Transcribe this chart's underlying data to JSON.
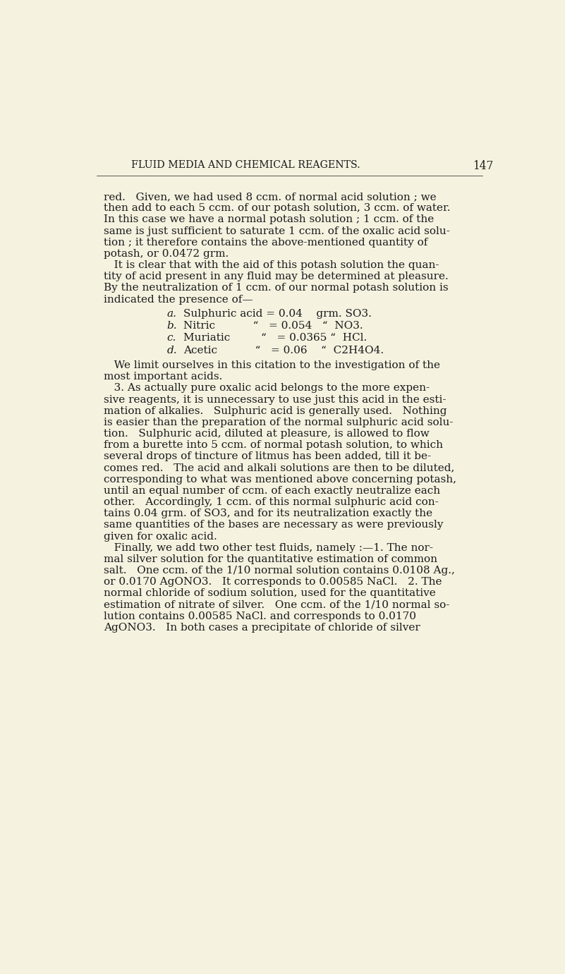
{
  "bg_color": "#f5f2e0",
  "text_color": "#1a1a1a",
  "header_text": "FLUID MEDIA AND CHEMICAL REAGENTS.",
  "header_number": "147",
  "body_lines1": [
    "red.   Given, we had used 8 ccm. of normal acid solution ; we",
    "then add to each 5 ccm. of our potash solution, 3 ccm. of water.",
    "In this case we have a normal potash solution ; 1 ccm. of the",
    "same is just sufficient to saturate 1 ccm. of the oxalic acid solu-",
    "tion ; it therefore contains the above-mentioned quantity of",
    "potash, or 0.0472 grm."
  ],
  "body_lines2": [
    "   It is clear that with the aid of this potash solution the quan-",
    "tity of acid present in any fluid may be determined at pleasure.",
    "By the neutralization of 1 ccm. of our normal potash solution is",
    "indicated the presence of—"
  ],
  "list_labels": [
    "a.",
    "b.",
    "c.",
    "d."
  ],
  "list_texts": [
    "Sulphuric acid = 0.04    grm. SO3.",
    "Nitric           “   = 0.054   “  NO3.",
    "Muriatic         “   = 0.0365 “  HCl.",
    "Acetic           “   = 0.06    “  C2H4O4."
  ],
  "body_lines3": [
    "   We limit ourselves in this citation to the investigation of the",
    "most important acids.",
    "   3. As actually pure oxalic acid belongs to the more expen-",
    "sive reagents, it is unnecessary to use just this acid in the esti-",
    "mation of alkalies.   Sulphuric acid is generally used.   Nothing",
    "is easier than the preparation of the normal sulphuric acid solu-",
    "tion.   Sulphuric acid, diluted at pleasure, is allowed to flow",
    "from a burette into 5 ccm. of normal potash solution, to which",
    "several drops of tincture of litmus has been added, till it be-",
    "comes red.   The acid and alkali solutions are then to be diluted,",
    "corresponding to what was mentioned above concerning potash,",
    "until an equal number of ccm. of each exactly neutralize each",
    "other.   Accordingly, 1 ccm. of this normal sulphuric acid con-",
    "tains 0.04 grm. of SO3, and for its neutralization exactly the",
    "same quantities of the bases are necessary as were previously",
    "given for oxalic acid.",
    "   Finally, we add two other test fluids, namely :—1. The nor-",
    "mal silver solution for the quantitative estimation of common",
    "salt.   One ccm. of the 1/10 normal solution contains 0.0108 Ag.,",
    "or 0.0170 AgONO3.   It corresponds to 0.00585 NaCl.   2. The",
    "normal chloride of sodium solution, used for the quantitative",
    "estimation of nitrate of silver.   One ccm. of the 1/10 normal so-",
    "lution contains 0.00585 NaCl. and corresponds to 0.0170",
    "AgONO3.   In both cases a precipitate of chloride of silver"
  ]
}
